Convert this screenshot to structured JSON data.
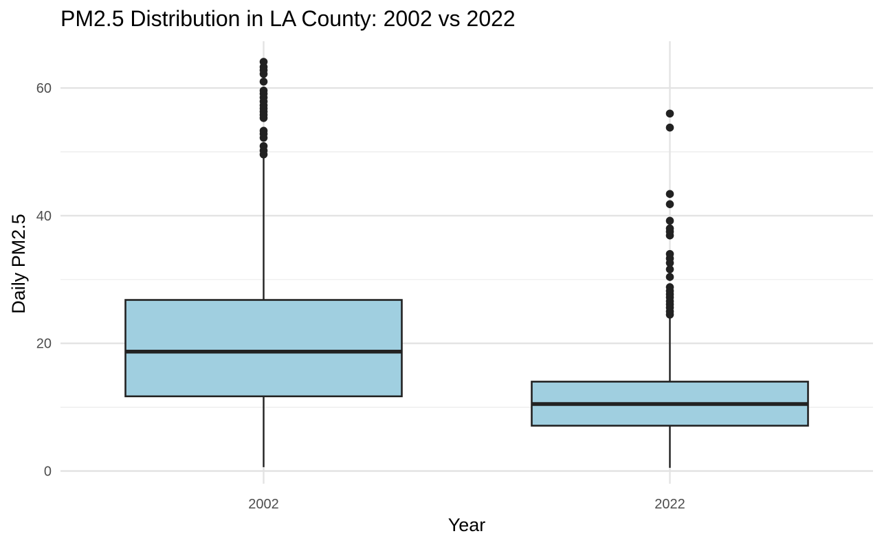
{
  "chart_data": {
    "type": "box",
    "title": "PM2.5 Distribution in LA County: 2002 vs 2022",
    "xlabel": "Year",
    "ylabel": "Daily PM2.5",
    "categories": [
      "2002",
      "2022"
    ],
    "ylim": [
      -1.5,
      67
    ],
    "yticks": [
      0,
      20,
      40,
      60
    ],
    "grid": true,
    "legend": "none",
    "box_fill": "#a0cfe0",
    "box_stroke": "#222222",
    "boxes": [
      {
        "category": "2002",
        "min": 0.6,
        "q1": 11.7,
        "median": 18.7,
        "q3": 26.8,
        "max": 49.5,
        "outliers": [
          49.6,
          50.2,
          50.9,
          52.2,
          52.8,
          53.3,
          55.3,
          55.8,
          56.3,
          56.8,
          57.3,
          57.9,
          58.5,
          59.1,
          59.6,
          61.0,
          62.2,
          62.8,
          63.3,
          64.1
        ]
      },
      {
        "category": "2022",
        "min": 0.5,
        "q1": 7.1,
        "median": 10.5,
        "q3": 14.0,
        "max": 24.3,
        "outliers": [
          24.5,
          25.0,
          25.6,
          26.1,
          26.6,
          27.2,
          27.7,
          28.2,
          28.8,
          30.4,
          31.6,
          32.6,
          33.3,
          34.0,
          36.9,
          37.5,
          38.0,
          39.2,
          41.8,
          43.4,
          53.8,
          56.0
        ]
      }
    ]
  }
}
